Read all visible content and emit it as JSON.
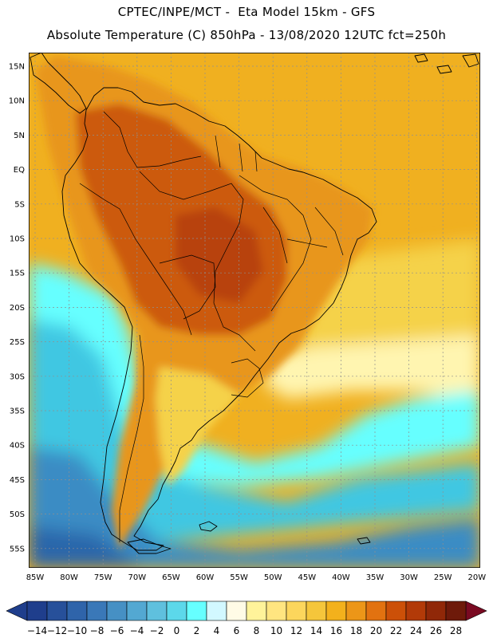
{
  "header": {
    "line1": "CPTEC/INPE/MCT -  Eta Model 15km - GFS",
    "line2": "Absolute Temperature (C) 850hPa - 13/08/2020 12UTC fct=250h"
  },
  "axes": {
    "lat_labels": [
      "15N",
      "10N",
      "5N",
      "EQ",
      "5S",
      "10S",
      "15S",
      "20S",
      "25S",
      "30S",
      "35S",
      "40S",
      "45S",
      "50S",
      "55S"
    ],
    "lon_labels": [
      "85W",
      "80W",
      "75W",
      "70W",
      "65W",
      "60W",
      "55W",
      "50W",
      "45W",
      "40W",
      "35W",
      "30W",
      "25W",
      "20W"
    ]
  },
  "colorbar": {
    "labels": [
      "-14",
      "-12",
      "-10",
      "-8",
      "-6",
      "-4",
      "-2",
      "0",
      "2",
      "4",
      "6",
      "8",
      "10",
      "12",
      "14",
      "16",
      "18",
      "20",
      "22",
      "24",
      "26",
      "28"
    ],
    "colors": [
      "#1f3e8c",
      "#27509a",
      "#2f64aa",
      "#3a78b8",
      "#4690c4",
      "#53a8d2",
      "#5fc0de",
      "#5cd8ea",
      "#66ffff",
      "#d2f8ff",
      "#fffbe6",
      "#fff39a",
      "#ffe580",
      "#fcd65c",
      "#f5c63b",
      "#f3b11c",
      "#ec9618",
      "#e27210",
      "#cc5008",
      "#b23a08",
      "#902808",
      "#6e1a0a"
    ],
    "low_arrow_color": "#1f3e8c",
    "high_arrow_color": "#7a0a22"
  },
  "colors": {
    "ocean_tropical": "#f0b020",
    "ocean_sub": "#f5d24a",
    "ocean_pale": "#fff5b0",
    "land_warm": "#e8961a",
    "land_hot": "#cc5a0a",
    "land_hottest": "#b8420a",
    "cold_light": "#66ffff",
    "cold_mid": "#3fc7e2",
    "cold_deep": "#3a8cc4",
    "cold_deepest": "#2a66aa"
  }
}
